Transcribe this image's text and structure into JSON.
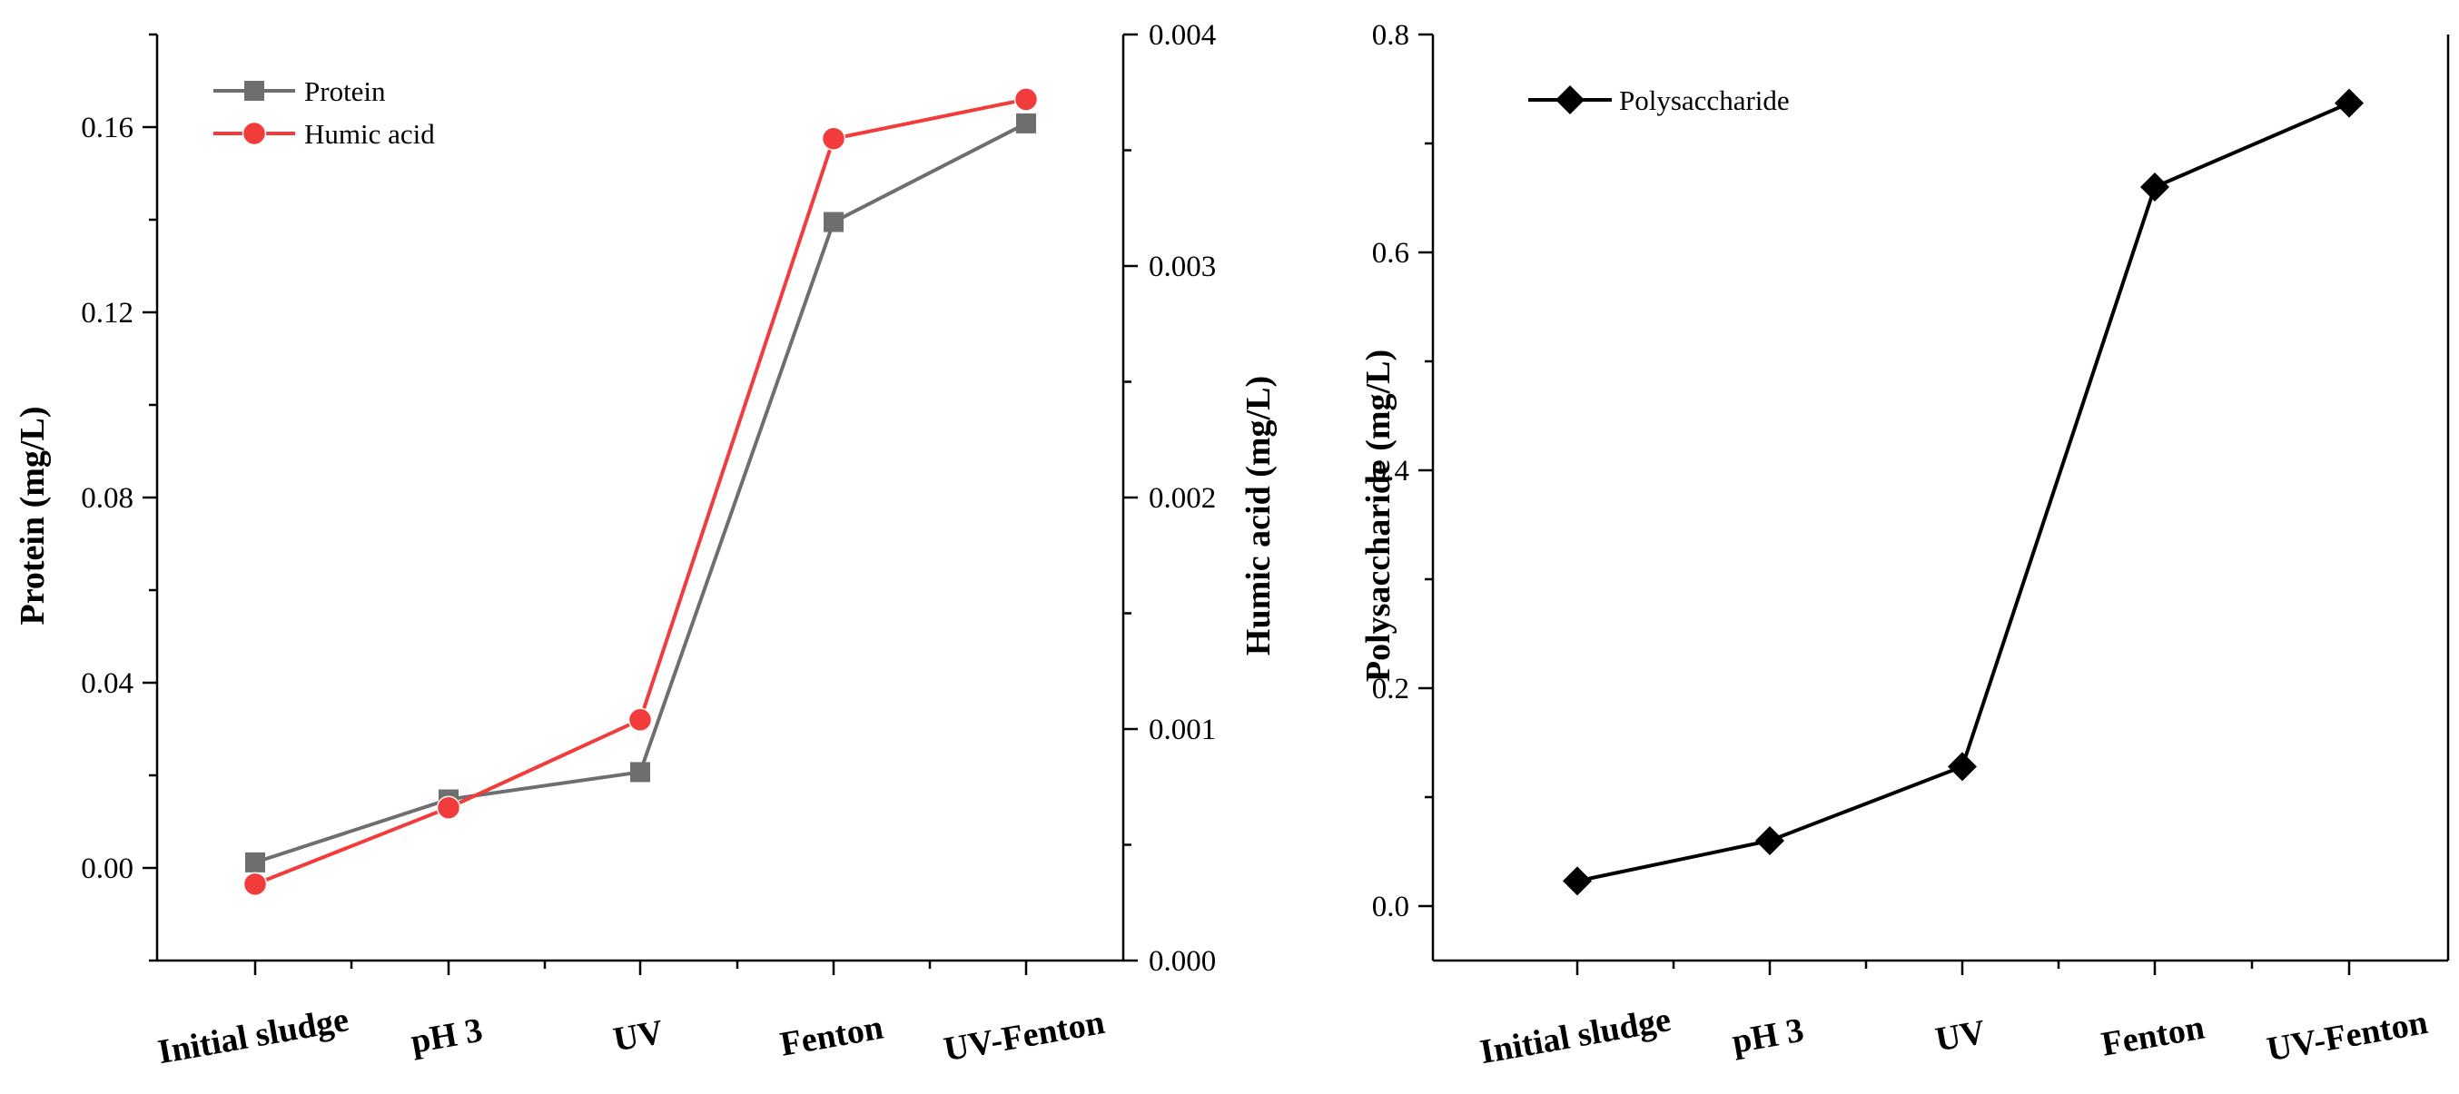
{
  "chart_data": [
    {
      "type": "line",
      "categories": [
        "Initial sludge",
        "pH 3",
        "UV",
        "Fenton",
        "UV-Fenton"
      ],
      "series": [
        {
          "name": "Protein",
          "axis": "left",
          "color": "#6e6e6e",
          "marker": "square",
          "values": [
            0.0012,
            0.0148,
            0.0207,
            0.1395,
            0.1608
          ]
        },
        {
          "name": "Humic acid",
          "axis": "right",
          "color": "#f23b3b",
          "marker": "circle",
          "values": [
            0.00033,
            0.00066,
            0.00104,
            0.00355,
            0.00372
          ]
        }
      ],
      "ylabel": "Protein (mg/L)",
      "ylim": [
        -0.02,
        0.18
      ],
      "yticks": [
        "0.00",
        "0.04",
        "0.08",
        "0.12",
        "0.16"
      ],
      "y2label": "Humic acid (mg/L)",
      "y2lim": [
        0,
        0.004
      ],
      "y2ticks": [
        "0.000",
        "0.001",
        "0.002",
        "0.003",
        "0.004"
      ],
      "legend": "top-left"
    },
    {
      "type": "line",
      "categories": [
        "Initial sludge",
        "pH 3",
        "UV",
        "Fenton",
        "UV-Fenton"
      ],
      "series": [
        {
          "name": "Polysaccharide",
          "axis": "left",
          "color": "#000000",
          "marker": "diamond",
          "values": [
            0.023,
            0.06,
            0.128,
            0.66,
            0.737
          ]
        }
      ],
      "ylabel": "Polysaccharide (mg/L)",
      "ylim": [
        -0.05,
        0.8
      ],
      "yticks": [
        "0.0",
        "0.2",
        "0.4",
        "0.6",
        "0.8"
      ],
      "legend": "top-left"
    }
  ]
}
